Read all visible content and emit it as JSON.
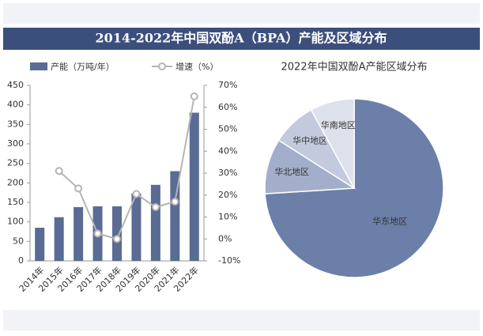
{
  "title": "2014-2022年中国双酚A（BPA）产能及区域分布",
  "chart_data": [
    {
      "type": "bar-line",
      "categories": [
        "2014年",
        "2015年",
        "2016年",
        "2017年",
        "2018年",
        "2019年",
        "2020年",
        "2021年",
        "2022年"
      ],
      "series": [
        {
          "name": "产能（万吨/年）",
          "color": "#5a6b94",
          "values": [
            85,
            112,
            138,
            140,
            140,
            173,
            195,
            230,
            380
          ]
        },
        {
          "name": "增速（%）",
          "color": "#b5b5b5",
          "axis": "y2",
          "values": [
            null,
            31,
            23,
            2.5,
            0,
            20.5,
            14.5,
            17,
            65
          ]
        }
      ],
      "ylim": [
        0,
        450
      ],
      "yticks": [
        0,
        50,
        100,
        150,
        200,
        250,
        300,
        350,
        400,
        450
      ],
      "y2lim": [
        -10,
        70
      ],
      "y2ticks": [
        {
          "value": -10,
          "label": "-10%"
        },
        {
          "value": 0,
          "label": "0%"
        },
        {
          "value": 10,
          "label": "10%"
        },
        {
          "value": 20,
          "label": "20%"
        },
        {
          "value": 30,
          "label": "30%"
        },
        {
          "value": 40,
          "label": "40%"
        },
        {
          "value": 50,
          "label": "50%"
        },
        {
          "value": 60,
          "label": "60%"
        },
        {
          "value": 70,
          "label": "70%"
        }
      ]
    },
    {
      "type": "pie",
      "title": "2022年中国双酚A产能区域分布",
      "categories": [
        "华东地区",
        "华北地区",
        "华中地区",
        "华南地区"
      ],
      "values": [
        74,
        10,
        8,
        8
      ],
      "colors": [
        "#6b7fa8",
        "#a3aecb",
        "#c3cadd",
        "#dde1ec"
      ]
    }
  ]
}
